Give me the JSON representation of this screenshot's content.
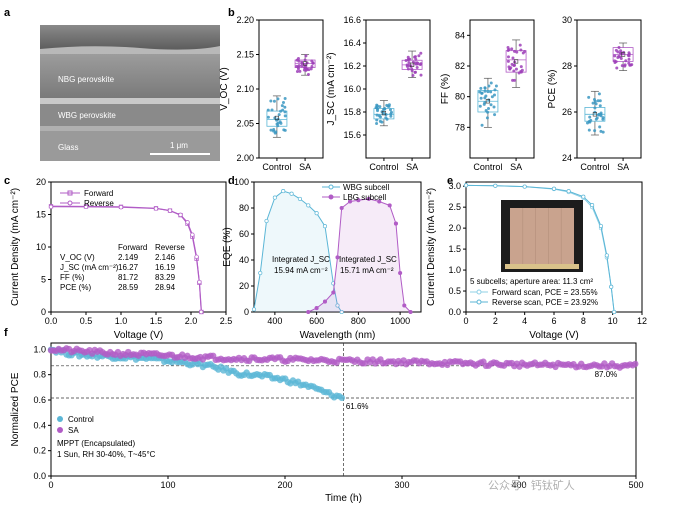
{
  "figure": {
    "panel_labels": [
      "a",
      "b",
      "c",
      "d",
      "e",
      "f"
    ],
    "sem": {
      "layers": [
        "NBG perovskite",
        "WBG perovskite",
        "Glass"
      ],
      "scale_bar": "1 μm"
    },
    "watermark": "公众号 · 钙钛矿人",
    "colors": {
      "control": "#5bb6d6",
      "sa": "#b15cc6",
      "control_point": "#3b98c2",
      "sa_point": "#9d3fb8"
    }
  },
  "chart_data": [
    {
      "id": "b1",
      "type": "box",
      "ylabel": "V_OC (V)",
      "ylim": [
        2.0,
        2.2
      ],
      "yticks": [
        "2.00",
        "2.05",
        "2.10",
        "2.15",
        "2.20"
      ],
      "categories": [
        "Control",
        "SA"
      ],
      "series": [
        {
          "name": "Control",
          "q1": 2.046,
          "median": 2.056,
          "q3": 2.068,
          "min": 2.03,
          "max": 2.09,
          "mean": 2.058
        },
        {
          "name": "SA",
          "q1": 2.131,
          "median": 2.137,
          "q3": 2.142,
          "min": 2.12,
          "max": 2.15,
          "mean": 2.137
        }
      ]
    },
    {
      "id": "b2",
      "type": "box",
      "ylabel": "J_SC (mA cm⁻²)",
      "ylim": [
        15.4,
        16.6
      ],
      "yticks": [
        "15.6",
        "15.8",
        "16.0",
        "16.2",
        "16.4",
        "16.6"
      ],
      "categories": [
        "Control",
        "SA"
      ],
      "series": [
        {
          "name": "Control",
          "q1": 15.74,
          "median": 15.78,
          "q3": 15.83,
          "min": 15.68,
          "max": 15.9,
          "mean": 15.79
        },
        {
          "name": "SA",
          "q1": 16.17,
          "median": 16.21,
          "q3": 16.25,
          "min": 16.1,
          "max": 16.33,
          "mean": 16.21
        }
      ]
    },
    {
      "id": "b3",
      "type": "box",
      "ylabel": "FF (%)",
      "ylim": [
        76,
        85
      ],
      "yticks": [
        "78",
        "80",
        "82",
        "84"
      ],
      "categories": [
        "Control",
        "SA"
      ],
      "series": [
        {
          "name": "Control",
          "q1": 79.0,
          "median": 79.7,
          "q3": 80.4,
          "min": 78.0,
          "max": 81.2,
          "mean": 79.7
        },
        {
          "name": "SA",
          "q1": 81.6,
          "median": 82.4,
          "q3": 83.0,
          "min": 80.6,
          "max": 83.7,
          "mean": 82.3
        }
      ]
    },
    {
      "id": "b4",
      "type": "box",
      "ylabel": "PCE (%)",
      "ylim": [
        24,
        30
      ],
      "yticks": [
        "24",
        "26",
        "28",
        "30"
      ],
      "categories": [
        "Control",
        "SA"
      ],
      "series": [
        {
          "name": "Control",
          "q1": 25.6,
          "median": 25.9,
          "q3": 26.2,
          "min": 25.0,
          "max": 26.9,
          "mean": 25.9
        },
        {
          "name": "SA",
          "q1": 28.2,
          "median": 28.5,
          "q3": 28.8,
          "min": 27.8,
          "max": 29.0,
          "mean": 28.5
        }
      ]
    },
    {
      "id": "c",
      "type": "line",
      "xlabel": "Voltage (V)",
      "ylabel": "Current Density (mA cm⁻²)",
      "xlim": [
        0,
        2.5
      ],
      "ylim": [
        0,
        20
      ],
      "xticks": [
        "0.0",
        "0.5",
        "1.0",
        "1.5",
        "2.0",
        "2.5"
      ],
      "yticks": [
        "0",
        "5",
        "10",
        "15",
        "20"
      ],
      "legend": [
        "Forward",
        "Reverse"
      ],
      "series": [
        {
          "name": "Forward",
          "x": [
            0,
            0.5,
            1.0,
            1.5,
            1.7,
            1.85,
            1.95,
            2.02,
            2.08,
            2.12,
            2.149
          ],
          "y": [
            16.27,
            16.24,
            16.18,
            15.95,
            15.6,
            14.9,
            13.6,
            11.6,
            8.2,
            4.5,
            0
          ]
        },
        {
          "name": "Reverse",
          "x": [
            0,
            0.5,
            1.0,
            1.5,
            1.7,
            1.85,
            1.95,
            2.02,
            2.08,
            2.12,
            2.146
          ],
          "y": [
            16.19,
            16.17,
            16.12,
            15.92,
            15.6,
            14.95,
            13.8,
            11.9,
            8.5,
            4.6,
            0
          ]
        }
      ],
      "table": {
        "headers": [
          "",
          "Forward",
          "Reverse"
        ],
        "rows": [
          [
            "V_OC (V)",
            "2.149",
            "2.146"
          ],
          [
            "J_SC (mA cm⁻²)",
            "16.27",
            "16.19"
          ],
          [
            "FF (%)",
            "81.72",
            "83.29"
          ],
          [
            "PCE (%)",
            "28.59",
            "28.94"
          ]
        ]
      }
    },
    {
      "id": "d",
      "type": "line",
      "xlabel": "Wavelength (nm)",
      "ylabel": "EQE (%)",
      "xlim": [
        300,
        1100
      ],
      "ylim": [
        0,
        100
      ],
      "xticks": [
        "400",
        "600",
        "800",
        "1000"
      ],
      "yticks": [
        "0",
        "20",
        "40",
        "60",
        "80",
        "100"
      ],
      "legend": [
        "WBG subcell",
        "LBG subcell"
      ],
      "series": [
        {
          "name": "WBG subcell",
          "x": [
            300,
            330,
            360,
            400,
            440,
            480,
            520,
            560,
            600,
            640,
            680,
            700,
            720
          ],
          "y": [
            2,
            30,
            70,
            88,
            93,
            91,
            87,
            82,
            76,
            66,
            22,
            5,
            0
          ]
        },
        {
          "name": "LBG subcell",
          "x": [
            560,
            600,
            640,
            680,
            700,
            720,
            760,
            800,
            850,
            900,
            950,
            980,
            1000,
            1020,
            1050
          ],
          "y": [
            0,
            3,
            8,
            15,
            42,
            80,
            85,
            86,
            87,
            85,
            82,
            68,
            30,
            5,
            0
          ]
        }
      ],
      "annotations": [
        "Integrated J_SC",
        "15.94 mA cm⁻²",
        "Integrated J_SC",
        "15.71 mA cm⁻²"
      ]
    },
    {
      "id": "e",
      "type": "line",
      "xlabel": "Voltage (V)",
      "ylabel": "Current Density (mA cm⁻²)",
      "xlim": [
        0,
        12
      ],
      "ylim": [
        0,
        3.1
      ],
      "xticks": [
        "0",
        "2",
        "4",
        "6",
        "8",
        "10",
        "12"
      ],
      "yticks": [
        "0.0",
        "0.5",
        "1.0",
        "1.5",
        "2.0",
        "2.5",
        "3.0"
      ],
      "legend": [
        "Forward scan, PCE = 23.55%",
        "Reverse scan, PCE = 23.92%"
      ],
      "note": "5 subcells; aperture area: 11.3 cm²",
      "series": [
        {
          "name": "Forward scan, PCE = 23.55%",
          "x": [
            0,
            2,
            4,
            6,
            7,
            8,
            8.6,
            9.2,
            9.6,
            9.9,
            10.1
          ],
          "y": [
            3.02,
            3.01,
            2.99,
            2.93,
            2.86,
            2.72,
            2.5,
            2.0,
            1.3,
            0.6,
            0
          ]
        },
        {
          "name": "Reverse scan, PCE = 23.92%",
          "x": [
            0,
            2,
            4,
            6,
            7,
            8,
            8.6,
            9.2,
            9.6,
            9.9,
            10.1
          ],
          "y": [
            3.02,
            3.01,
            2.99,
            2.94,
            2.88,
            2.75,
            2.55,
            2.05,
            1.35,
            0.6,
            0
          ]
        }
      ]
    },
    {
      "id": "f",
      "type": "line",
      "xlabel": "Time (h)",
      "ylabel": "Normalized PCE",
      "xlim": [
        0,
        500
      ],
      "ylim": [
        0,
        1.05
      ],
      "xticks": [
        "0",
        "100",
        "200",
        "300",
        "400",
        "500"
      ],
      "yticks": [
        "0.0",
        "0.2",
        "0.4",
        "0.6",
        "0.8",
        "1.0"
      ],
      "legend": [
        "Control",
        "SA"
      ],
      "notes": [
        "MPPT (Encapsulated)",
        "1 Sun, RH 30-40%, T~45°C"
      ],
      "annotations": [
        "61.6%",
        "87.0%"
      ],
      "series": [
        {
          "name": "Control",
          "x": [
            0,
            20,
            40,
            60,
            80,
            100,
            120,
            140,
            160,
            180,
            200,
            220,
            240,
            250
          ],
          "y": [
            1.0,
            0.96,
            0.95,
            0.94,
            0.93,
            0.91,
            0.89,
            0.86,
            0.81,
            0.79,
            0.76,
            0.71,
            0.64,
            0.616
          ]
        },
        {
          "name": "SA",
          "x": [
            0,
            50,
            100,
            150,
            200,
            250,
            300,
            350,
            400,
            450,
            500
          ],
          "y": [
            1.0,
            0.97,
            0.95,
            0.93,
            0.92,
            0.91,
            0.9,
            0.89,
            0.88,
            0.875,
            0.87
          ]
        }
      ]
    }
  ]
}
